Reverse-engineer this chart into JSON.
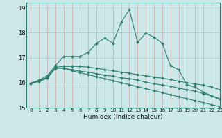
{
  "xlabel": "Humidex (Indice chaleur)",
  "xlim": [
    -0.5,
    23
  ],
  "ylim": [
    15,
    19.2
  ],
  "yticks": [
    15,
    16,
    17,
    18,
    19
  ],
  "xticks": [
    0,
    1,
    2,
    3,
    4,
    5,
    6,
    7,
    8,
    9,
    10,
    11,
    12,
    13,
    14,
    15,
    16,
    17,
    18,
    19,
    20,
    21,
    22,
    23
  ],
  "bg_color": "#cce8e8",
  "grid_color": "#99cccc",
  "line_color": "#2e7d6e",
  "line1_x": [
    0,
    1,
    2,
    3,
    4,
    5,
    6,
    7,
    8,
    9,
    10,
    11,
    12,
    13,
    14,
    15,
    16,
    17,
    18,
    19,
    20,
    21,
    22,
    23
  ],
  "line1_y": [
    15.98,
    16.1,
    16.28,
    16.68,
    17.05,
    17.05,
    17.05,
    17.22,
    17.58,
    17.78,
    17.58,
    18.42,
    18.92,
    17.62,
    17.98,
    17.82,
    17.58,
    16.68,
    16.52,
    15.92,
    15.82,
    15.62,
    15.48,
    15.32
  ],
  "line2_x": [
    0,
    1,
    2,
    3,
    4,
    5,
    6,
    7,
    8,
    9,
    10,
    11,
    12,
    13,
    14,
    15,
    16,
    17,
    18,
    19,
    20,
    21,
    22,
    23
  ],
  "line2_y": [
    15.98,
    16.08,
    16.22,
    16.62,
    16.65,
    16.65,
    16.65,
    16.62,
    16.58,
    16.52,
    16.48,
    16.42,
    16.38,
    16.32,
    16.28,
    16.22,
    16.18,
    16.12,
    16.06,
    16.0,
    15.95,
    15.9,
    15.82,
    15.72
  ],
  "line3_x": [
    0,
    1,
    2,
    3,
    4,
    5,
    6,
    7,
    8,
    9,
    10,
    11,
    12,
    13,
    14,
    15,
    16,
    17,
    18,
    19,
    20,
    21,
    22,
    23
  ],
  "line3_y": [
    15.98,
    16.05,
    16.18,
    16.58,
    16.58,
    16.52,
    16.46,
    16.42,
    16.36,
    16.3,
    16.26,
    16.2,
    16.16,
    16.1,
    16.02,
    15.96,
    15.9,
    15.86,
    15.78,
    15.72,
    15.66,
    15.56,
    15.47,
    15.37
  ],
  "line4_x": [
    0,
    1,
    2,
    3,
    4,
    5,
    6,
    7,
    8,
    9,
    10,
    11,
    12,
    13,
    14,
    15,
    16,
    17,
    18,
    19,
    20,
    21,
    22,
    23
  ],
  "line4_y": [
    15.98,
    16.05,
    16.18,
    16.58,
    16.58,
    16.48,
    16.4,
    16.32,
    16.24,
    16.16,
    16.08,
    16.0,
    15.92,
    15.84,
    15.76,
    15.68,
    15.6,
    15.52,
    15.44,
    15.36,
    15.28,
    15.2,
    15.12,
    15.04
  ]
}
